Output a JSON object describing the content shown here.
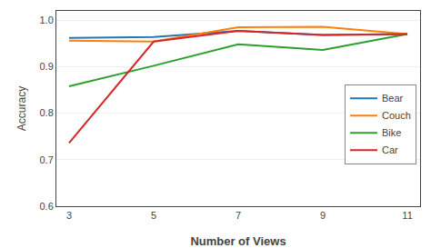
{
  "chart_data": {
    "type": "line",
    "x_label": "Number of Views",
    "y_label": "Accuracy",
    "x": [
      3,
      5,
      7,
      9,
      11
    ],
    "series": [
      {
        "name": "Bear",
        "values": [
          0.962,
          0.964,
          0.977,
          0.968,
          0.97
        ]
      },
      {
        "name": "Couch",
        "values": [
          0.956,
          0.954,
          0.985,
          0.986,
          0.97
        ]
      },
      {
        "name": "Bike",
        "values": [
          0.858,
          0.902,
          0.948,
          0.936,
          0.97
        ]
      },
      {
        "name": "Car",
        "values": [
          0.736,
          0.954,
          0.977,
          0.968,
          0.97
        ]
      }
    ],
    "xlim": [
      2.7,
      11.3
    ],
    "xticks": [
      3,
      5,
      7,
      9,
      11
    ],
    "ylim": [
      0.6,
      1.02
    ],
    "yticks": [
      0.6,
      0.7,
      0.8,
      0.9,
      {
        "value": 1.0,
        "label": "1.0"
      }
    ],
    "grid": "y",
    "legend": "right"
  }
}
